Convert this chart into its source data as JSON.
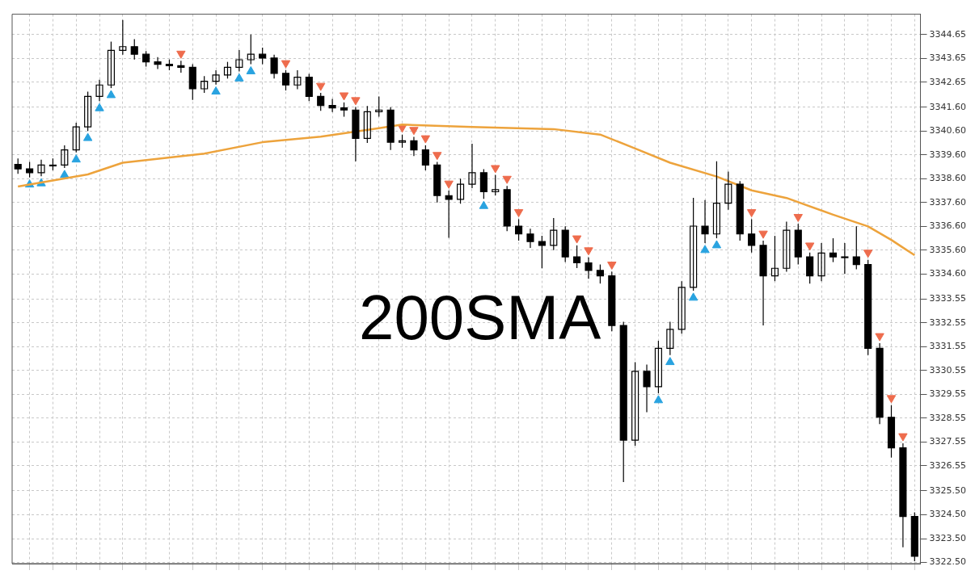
{
  "chart_data": {
    "type": "candlestick",
    "color": "#000000",
    "annotations": [
      "200SMA"
    ],
    "categories": [
      null,
      null,
      null,
      null,
      null,
      null,
      null,
      null,
      null,
      null,
      null,
      null,
      null,
      null,
      null,
      null,
      null,
      null,
      null,
      null,
      null,
      null,
      null,
      null,
      null,
      null,
      null,
      null,
      null,
      null,
      null,
      null,
      null,
      null,
      null,
      null,
      null,
      null,
      null,
      null,
      null,
      null,
      null,
      null,
      null,
      null,
      null,
      null,
      null,
      null,
      null,
      null,
      null,
      null,
      null,
      null,
      null,
      null,
      null,
      null,
      null,
      null,
      null,
      null,
      null,
      null,
      null,
      null,
      null,
      null,
      null,
      null,
      null,
      null,
      null,
      null,
      null,
      null
    ],
    "ohlc": [
      [
        3339.2,
        3339.45,
        3338.8,
        3339.01
      ],
      [
        3339.01,
        3339.3,
        3338.65,
        3338.85
      ],
      [
        3338.85,
        3339.4,
        3338.7,
        3339.17
      ],
      [
        3339.17,
        3339.45,
        3338.95,
        3339.17
      ],
      [
        3339.17,
        3340.0,
        3339.05,
        3339.81
      ],
      [
        3339.81,
        3340.95,
        3339.7,
        3340.77
      ],
      [
        3340.77,
        3342.25,
        3340.6,
        3342.05
      ],
      [
        3342.05,
        3342.75,
        3341.85,
        3342.53
      ],
      [
        3342.53,
        3344.35,
        3342.4,
        3343.98
      ],
      [
        3343.98,
        3345.26,
        3343.8,
        3344.14
      ],
      [
        3344.14,
        3344.45,
        3343.6,
        3343.82
      ],
      [
        3343.82,
        3343.95,
        3343.3,
        3343.5
      ],
      [
        3343.5,
        3343.7,
        3343.2,
        3343.4
      ],
      [
        3343.4,
        3343.6,
        3343.15,
        3343.34
      ],
      [
        3343.34,
        3343.55,
        3343.05,
        3343.27
      ],
      [
        3343.27,
        3343.4,
        3341.9,
        3342.37
      ],
      [
        3342.37,
        3342.9,
        3342.2,
        3342.69
      ],
      [
        3342.69,
        3343.15,
        3342.55,
        3342.95
      ],
      [
        3342.95,
        3343.5,
        3342.8,
        3343.27
      ],
      [
        3343.27,
        3344.0,
        3343.1,
        3343.59
      ],
      [
        3343.59,
        3344.65,
        3343.4,
        3343.82
      ],
      [
        3343.82,
        3344.1,
        3343.4,
        3343.66
      ],
      [
        3343.66,
        3343.8,
        3342.8,
        3343.02
      ],
      [
        3343.02,
        3343.15,
        3342.3,
        3342.53
      ],
      [
        3342.53,
        3343.15,
        3342.35,
        3342.86
      ],
      [
        3342.86,
        3343.0,
        3341.85,
        3342.05
      ],
      [
        3342.05,
        3342.2,
        3341.45,
        3341.67
      ],
      [
        3341.67,
        3341.95,
        3341.4,
        3341.57
      ],
      [
        3341.57,
        3341.8,
        3341.2,
        3341.48
      ],
      [
        3341.48,
        3341.6,
        3339.33,
        3340.29
      ],
      [
        3340.29,
        3341.65,
        3340.1,
        3341.41
      ],
      [
        3341.41,
        3342.05,
        3341.2,
        3341.48
      ],
      [
        3341.48,
        3341.6,
        3339.8,
        3340.13
      ],
      [
        3340.13,
        3340.45,
        3339.9,
        3340.19
      ],
      [
        3340.19,
        3340.35,
        3339.55,
        3339.81
      ],
      [
        3339.81,
        3340.0,
        3338.95,
        3339.17
      ],
      [
        3339.17,
        3339.3,
        3337.6,
        3337.89
      ],
      [
        3337.89,
        3338.1,
        3336.12,
        3337.73
      ],
      [
        3337.73,
        3338.6,
        3337.55,
        3338.37
      ],
      [
        3338.37,
        3340.07,
        3338.2,
        3338.85
      ],
      [
        3338.85,
        3339.0,
        3337.75,
        3338.05
      ],
      [
        3338.05,
        3338.75,
        3337.9,
        3338.14
      ],
      [
        3338.14,
        3338.3,
        3336.4,
        3336.61
      ],
      [
        3336.61,
        3336.9,
        3336.0,
        3336.28
      ],
      [
        3336.28,
        3336.5,
        3335.7,
        3335.96
      ],
      [
        3335.96,
        3336.2,
        3334.84,
        3335.8
      ],
      [
        3335.8,
        3336.95,
        3335.6,
        3336.44
      ],
      [
        3336.44,
        3336.6,
        3335.1,
        3335.32
      ],
      [
        3335.32,
        3335.8,
        3334.85,
        3335.07
      ],
      [
        3335.07,
        3335.3,
        3334.4,
        3334.75
      ],
      [
        3334.75,
        3335.0,
        3334.2,
        3334.52
      ],
      [
        3334.52,
        3334.7,
        3332.2,
        3332.44
      ],
      [
        3332.44,
        3332.6,
        3325.87,
        3327.63
      ],
      [
        3327.63,
        3330.9,
        3327.4,
        3330.52
      ],
      [
        3330.52,
        3330.8,
        3328.8,
        3329.87
      ],
      [
        3329.87,
        3331.8,
        3329.6,
        3331.48
      ],
      [
        3331.48,
        3332.6,
        3331.2,
        3332.28
      ],
      [
        3332.28,
        3334.3,
        3332.1,
        3334.04
      ],
      [
        3334.04,
        3337.8,
        3333.9,
        3336.61
      ],
      [
        3336.61,
        3337.7,
        3335.9,
        3336.28
      ],
      [
        3336.28,
        3339.33,
        3336.1,
        3337.57
      ],
      [
        3337.57,
        3338.9,
        3337.3,
        3338.37
      ],
      [
        3338.37,
        3338.5,
        3336.0,
        3336.28
      ],
      [
        3336.28,
        3336.9,
        3335.5,
        3335.8
      ],
      [
        3335.8,
        3336.0,
        3332.44,
        3334.52
      ],
      [
        3334.52,
        3336.2,
        3334.3,
        3334.84
      ],
      [
        3334.84,
        3336.8,
        3334.7,
        3336.44
      ],
      [
        3336.44,
        3336.7,
        3335.0,
        3335.32
      ],
      [
        3335.32,
        3335.5,
        3334.2,
        3334.52
      ],
      [
        3334.52,
        3335.9,
        3334.3,
        3335.48
      ],
      [
        3335.48,
        3336.1,
        3335.1,
        3335.32
      ],
      [
        3335.32,
        3335.9,
        3334.6,
        3335.32
      ],
      [
        3335.32,
        3336.6,
        3334.8,
        3335.0
      ],
      [
        3335.0,
        3335.2,
        3331.2,
        3331.48
      ],
      [
        3331.48,
        3331.7,
        3328.3,
        3328.59
      ],
      [
        3328.59,
        3329.1,
        3326.9,
        3327.31
      ],
      [
        3327.31,
        3327.5,
        3323.14,
        3324.43
      ],
      [
        3324.43,
        3324.6,
        3322.55,
        3322.76
      ]
    ],
    "series": [
      {
        "type": "line",
        "color": "#eda33c",
        "values": [
          3338.27,
          null,
          null,
          null,
          null,
          null,
          3338.78,
          null,
          null,
          3339.27,
          null,
          null,
          null,
          null,
          null,
          null,
          3339.65,
          null,
          null,
          null,
          null,
          3340.13,
          null,
          null,
          null,
          null,
          3340.36,
          null,
          null,
          null,
          null,
          3340.72,
          null,
          3340.87,
          null,
          null,
          null,
          null,
          null,
          3340.77,
          null,
          null,
          null,
          null,
          null,
          null,
          3340.68,
          null,
          null,
          null,
          3340.45,
          null,
          null,
          3339.87,
          null,
          null,
          3339.27,
          null,
          null,
          null,
          3338.69,
          null,
          null,
          3338.11,
          null,
          null,
          3337.79,
          null,
          null,
          null,
          3337.09,
          null,
          null,
          3336.6,
          null,
          3336.03,
          3335.71,
          3335.39
        ]
      },
      {
        "type": "scatter",
        "marker": "triangle",
        "color": "#29a3e0",
        "values": [
          null,
          3338.35,
          3338.4,
          null,
          3338.75,
          3339.4,
          3340.3,
          3341.55,
          3342.1,
          null,
          null,
          null,
          null,
          null,
          null,
          null,
          null,
          3342.25,
          null,
          3342.8,
          3343.1,
          null,
          null,
          null,
          null,
          null,
          null,
          null,
          null,
          null,
          null,
          null,
          null,
          null,
          null,
          null,
          null,
          null,
          null,
          null,
          3337.45,
          null,
          null,
          null,
          null,
          null,
          null,
          null,
          null,
          null,
          null,
          null,
          null,
          null,
          null,
          3329.3,
          3330.9,
          null,
          3333.6,
          3335.6,
          3335.8,
          null,
          null,
          null,
          null,
          null,
          null,
          null,
          null,
          null,
          null,
          null,
          null,
          null,
          null,
          null,
          null,
          null
        ]
      },
      {
        "type": "scatter",
        "marker": "triangle",
        "color": "#ee6c4d",
        "values": [
          null,
          null,
          null,
          null,
          null,
          null,
          null,
          null,
          null,
          null,
          null,
          null,
          null,
          null,
          3343.85,
          null,
          null,
          null,
          null,
          null,
          null,
          null,
          null,
          3343.45,
          null,
          null,
          3342.5,
          null,
          3342.1,
          3341.9,
          null,
          null,
          null,
          3340.75,
          3340.65,
          3340.3,
          3339.6,
          3338.4,
          null,
          null,
          null,
          3339.05,
          3338.6,
          3337.2,
          null,
          null,
          null,
          null,
          3336.1,
          3335.6,
          null,
          3335.0,
          null,
          null,
          null,
          null,
          null,
          null,
          null,
          null,
          null,
          null,
          null,
          3337.2,
          3336.3,
          null,
          null,
          3337.0,
          3335.8,
          null,
          null,
          null,
          null,
          3335.5,
          3332.0,
          3329.4,
          3327.8,
          null
        ]
      }
    ],
    "ylim": [
      3322.45,
      3345.5
    ],
    "yticks": [
      3344.65,
      3343.65,
      3342.65,
      {
        "value": 3341.6,
        "label": "3341.60"
      },
      {
        "value": 3340.6,
        "label": "3340.60"
      },
      {
        "value": 3339.6,
        "label": "3339.60"
      },
      {
        "value": 3338.6,
        "label": "3338.60"
      },
      {
        "value": 3337.6,
        "label": "3337.60"
      },
      {
        "value": 3336.6,
        "label": "3336.60"
      },
      {
        "value": 3335.6,
        "label": "3335.60"
      },
      {
        "value": 3334.6,
        "label": "3334.60"
      },
      3333.55,
      3332.55,
      3331.55,
      3330.55,
      3329.55,
      3328.55,
      3327.55,
      3326.55,
      {
        "value": 3325.5,
        "label": "3325.50"
      },
      {
        "value": 3324.5,
        "label": "3324.50"
      },
      {
        "value": 3323.5,
        "label": "3323.50"
      },
      {
        "value": 3322.5,
        "label": "3322.50"
      }
    ],
    "grid": true,
    "tick_labels": "y"
  }
}
